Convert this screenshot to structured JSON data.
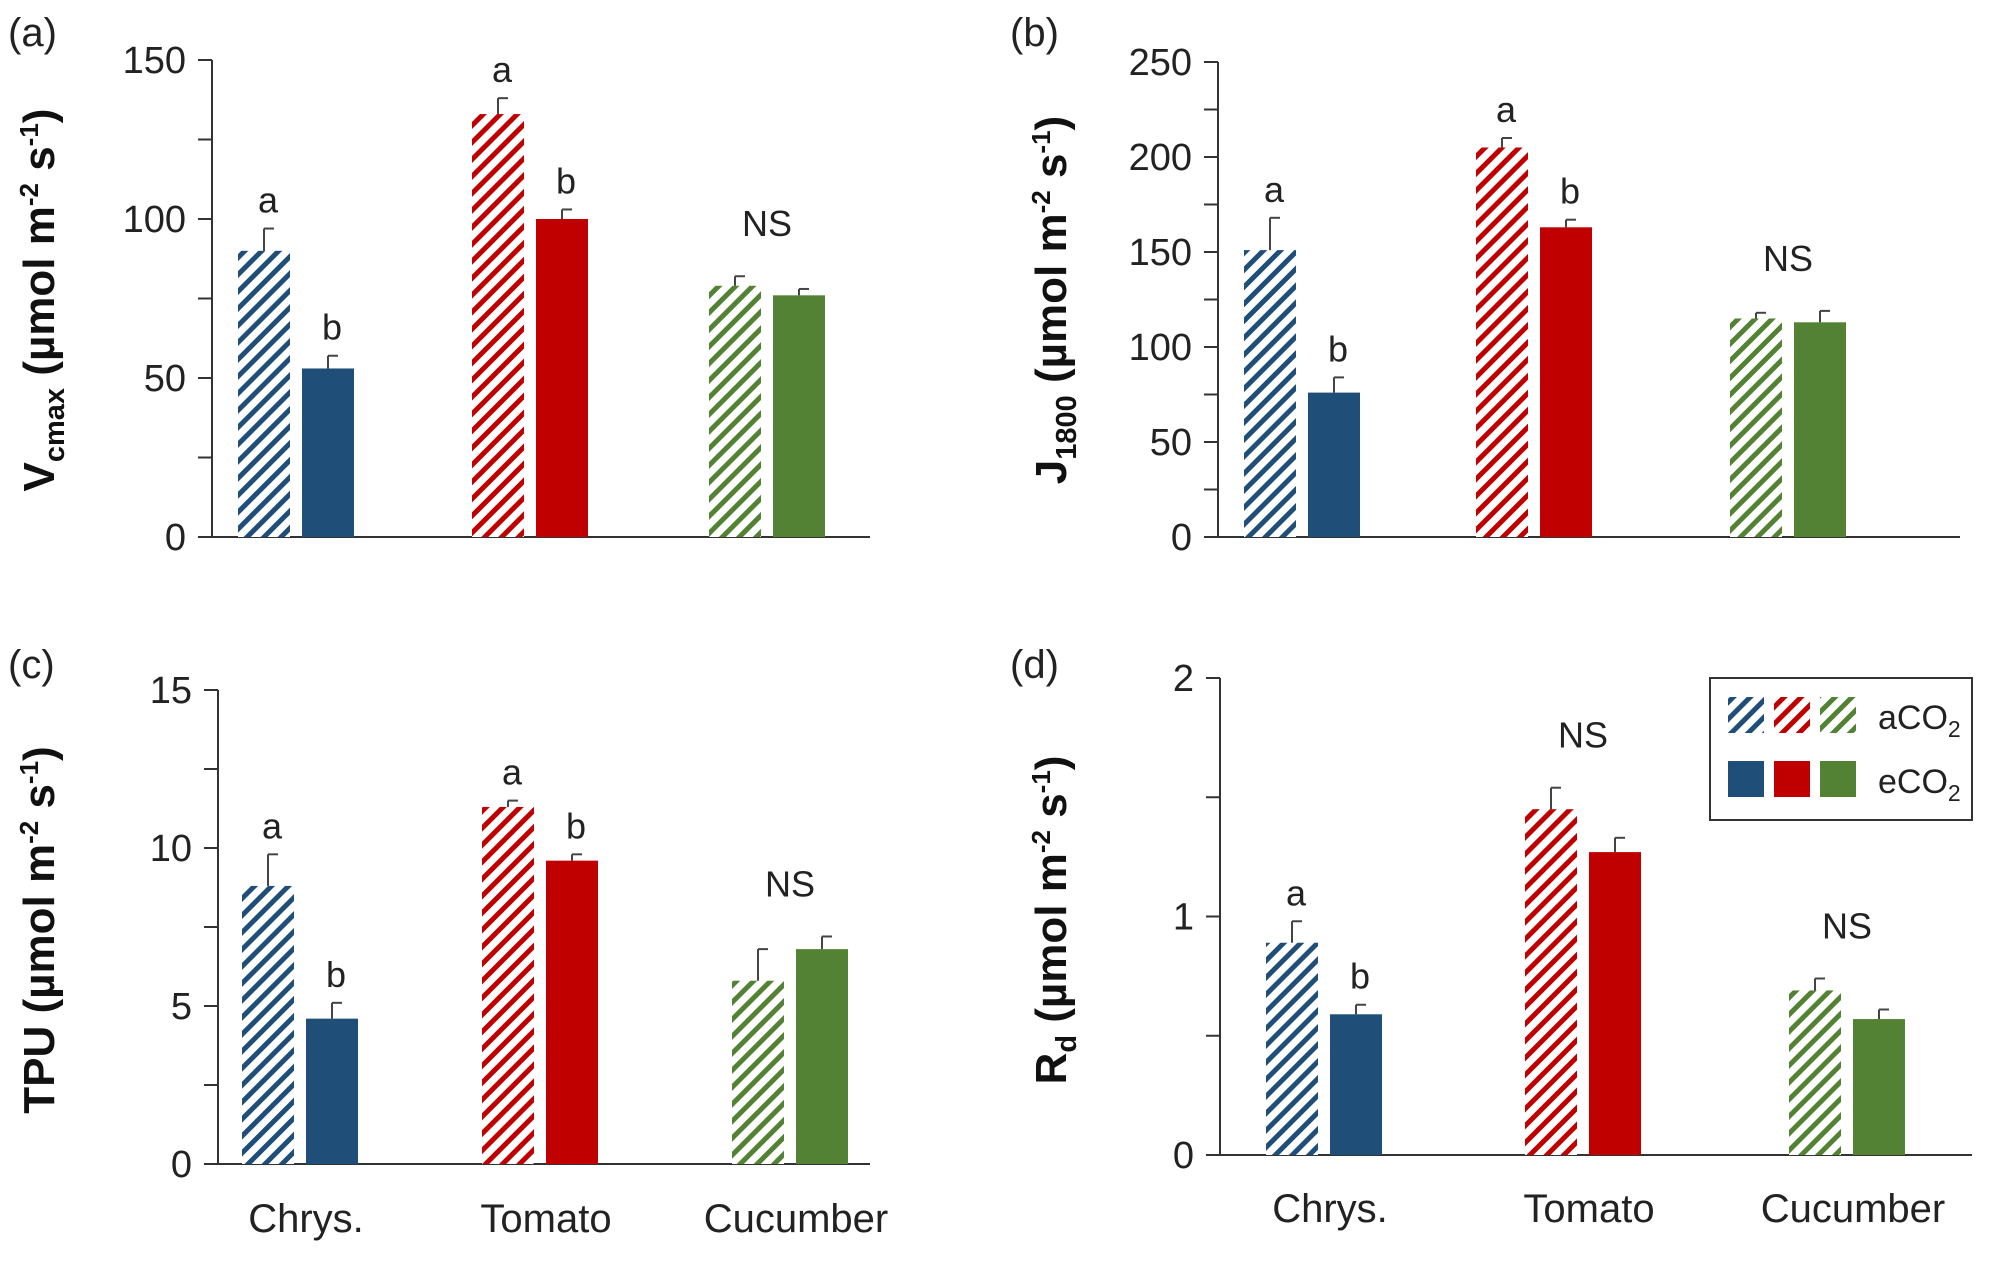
{
  "chart_data": [
    {
      "panel": "(a)",
      "type": "bar",
      "ylabel": "Vcmax (µmol m-2 s-1)",
      "ylim": [
        0,
        150
      ],
      "yticks": [
        0,
        50,
        100,
        150
      ],
      "categories": [
        "Chrys.",
        "Tomato",
        "Cucumber"
      ],
      "series": [
        {
          "name": "aCO2",
          "values": [
            90,
            133,
            79
          ],
          "errors": [
            7,
            5,
            3
          ]
        },
        {
          "name": "eCO2",
          "values": [
            53,
            100,
            76
          ],
          "errors": [
            4,
            3,
            2
          ]
        }
      ],
      "annotations": [
        {
          "category": "Chrys.",
          "labels": [
            "a",
            "b"
          ]
        },
        {
          "category": "Tomato",
          "labels": [
            "a",
            "b"
          ]
        },
        {
          "category": "Cucumber",
          "labels": [
            "NS"
          ]
        }
      ]
    },
    {
      "panel": "(b)",
      "type": "bar",
      "ylabel": "J1800 (µmol m-2 s-1)",
      "ylim": [
        0,
        250
      ],
      "yticks": [
        0,
        50,
        100,
        150,
        200,
        250
      ],
      "categories": [
        "Chrys.",
        "Tomato",
        "Cucumber"
      ],
      "series": [
        {
          "name": "aCO2",
          "values": [
            151,
            205,
            115
          ],
          "errors": [
            17,
            5,
            3
          ]
        },
        {
          "name": "eCO2",
          "values": [
            76,
            163,
            113
          ],
          "errors": [
            8,
            4,
            6
          ]
        }
      ],
      "annotations": [
        {
          "category": "Chrys.",
          "labels": [
            "a",
            "b"
          ]
        },
        {
          "category": "Tomato",
          "labels": [
            "a",
            "b"
          ]
        },
        {
          "category": "Cucumber",
          "labels": [
            "NS"
          ]
        }
      ]
    },
    {
      "panel": "(c)",
      "type": "bar",
      "ylabel": "TPU (µmol m-2 s-1)",
      "ylim": [
        0,
        15
      ],
      "yticks": [
        0,
        5,
        10,
        15
      ],
      "categories": [
        "Chrys.",
        "Tomato",
        "Cucumber"
      ],
      "series": [
        {
          "name": "aCO2",
          "values": [
            8.8,
            11.3,
            5.8
          ],
          "errors": [
            1.0,
            0.2,
            1.0
          ]
        },
        {
          "name": "eCO2",
          "values": [
            4.6,
            9.6,
            6.8
          ],
          "errors": [
            0.5,
            0.2,
            0.4
          ]
        }
      ],
      "annotations": [
        {
          "category": "Chrys.",
          "labels": [
            "a",
            "b"
          ]
        },
        {
          "category": "Tomato",
          "labels": [
            "a",
            "b"
          ]
        },
        {
          "category": "Cucumber",
          "labels": [
            "NS"
          ]
        }
      ]
    },
    {
      "panel": "(d)",
      "type": "bar",
      "ylabel": "Rd (µmol m-2 s-1)",
      "ylim": [
        0,
        2
      ],
      "yticks": [
        0,
        1,
        2
      ],
      "categories": [
        "Chrys.",
        "Tomato",
        "Cucumber"
      ],
      "series": [
        {
          "name": "aCO2",
          "values": [
            0.89,
            1.45,
            0.69
          ],
          "errors": [
            0.09,
            0.09,
            0.05
          ]
        },
        {
          "name": "eCO2",
          "values": [
            0.59,
            1.27,
            0.57
          ],
          "errors": [
            0.04,
            0.06,
            0.04
          ]
        }
      ],
      "annotations": [
        {
          "category": "Chrys.",
          "labels": [
            "a",
            "b"
          ]
        },
        {
          "category": "Tomato",
          "labels": [
            "NS"
          ]
        },
        {
          "category": "Cucumber",
          "labels": [
            "NS"
          ]
        }
      ]
    }
  ],
  "legend": {
    "entries": [
      {
        "label": "aCO",
        "sub": "2",
        "style": "hatched"
      },
      {
        "label": "eCO",
        "sub": "2",
        "style": "solid"
      }
    ],
    "placement": "top-right of panel (d)"
  },
  "ylabels": {
    "a": {
      "main": "V",
      "sub": "cmax",
      "rest": " (µmol m",
      "sup1": "-2",
      "mid": " s",
      "sup2": "-1",
      "end": ")"
    },
    "b": {
      "main": "J",
      "sub": "1800",
      "rest": " (µmol m",
      "sup1": "-2",
      "mid": " s",
      "sup2": "-1",
      "end": ")"
    },
    "c": {
      "main": "TPU",
      "sub": "",
      "rest": " (µmol m",
      "sup1": "-2",
      "mid": " s",
      "sup2": "-1",
      "end": ")"
    },
    "d": {
      "main": "R",
      "sub": "d",
      "rest": " (µmol m",
      "sup1": "-2",
      "mid": " s",
      "sup2": "-1",
      "end": ")"
    }
  },
  "colors": {
    "chrys": "#1f4e79",
    "tomato": "#c00000",
    "cucumber": "#548235",
    "axis": "#333333"
  }
}
